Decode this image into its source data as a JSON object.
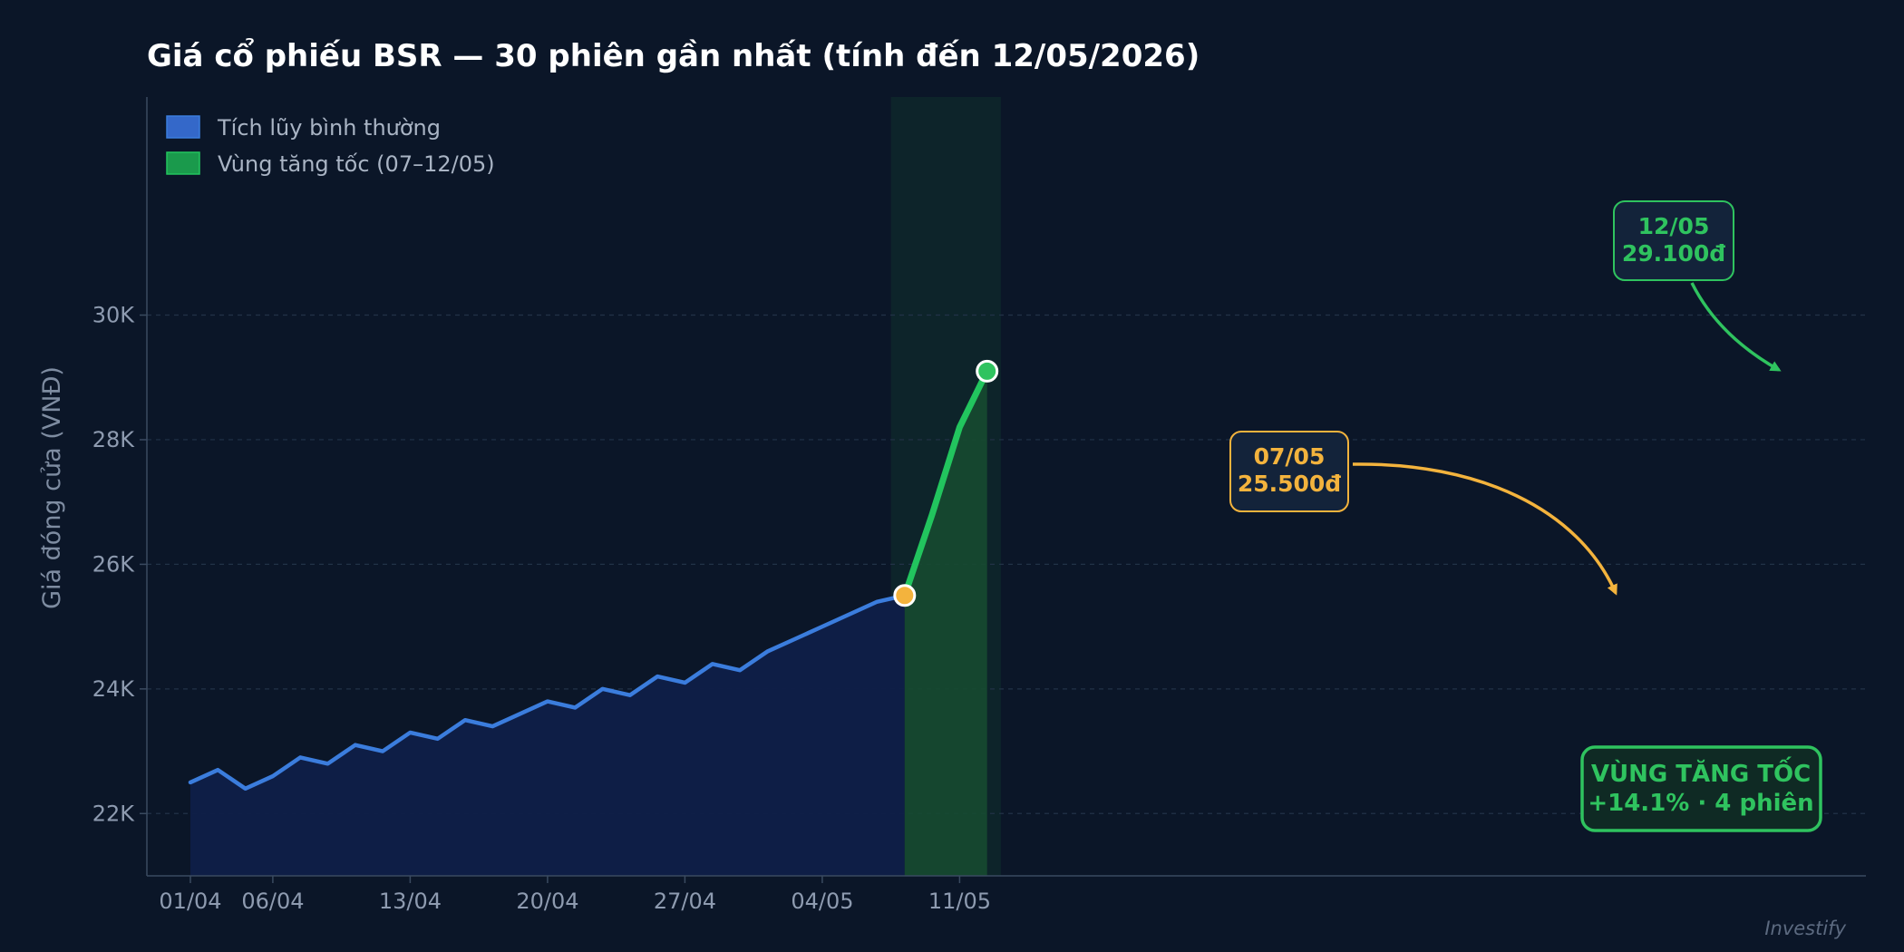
{
  "chart_data": {
    "type": "line",
    "title": "Giá cổ phiếu BSR — 30 phiên gần nhất (tính đến 12/05/2026)",
    "xlabel": "",
    "ylabel": "Giá đóng cửa (VNĐ)",
    "ylim": [
      21000,
      33500
    ],
    "yticks": [
      22000,
      24000,
      26000,
      28000,
      30000
    ],
    "ytick_labels": [
      "22K",
      "24K",
      "26K",
      "28K",
      "30K"
    ],
    "xticks": [
      {
        "index": 0,
        "label": "01/04"
      },
      {
        "index": 3,
        "label": "06/04"
      },
      {
        "index": 8,
        "label": "13/04"
      },
      {
        "index": 13,
        "label": "20/04"
      },
      {
        "index": 18,
        "label": "27/04"
      },
      {
        "index": 23,
        "label": "04/05"
      },
      {
        "index": 28,
        "label": "11/05"
      }
    ],
    "grid": true,
    "legend_position": "top-left",
    "series": [
      {
        "name": "Tích lũy bình thường",
        "color": "#3b7ddd",
        "start_index": 0,
        "values": [
          22500,
          22700,
          22400,
          22600,
          22900,
          22800,
          23100,
          23000,
          23300,
          23200,
          23500,
          23400,
          23600,
          23800,
          23700,
          24000,
          23900,
          24200,
          24100,
          24400,
          24300,
          24600,
          24800,
          25000,
          25200,
          25400,
          25500
        ]
      },
      {
        "name": "Vùng tăng tốc (07–12/05)",
        "color": "#22c55e",
        "start_index": 26,
        "values": [
          25500,
          26800,
          28200,
          29100
        ]
      }
    ],
    "highlight_zone": {
      "start_index": 25.5,
      "end_index": 29.5
    },
    "annotations": [
      {
        "line1": "07/05",
        "line2": "25.500đ",
        "index": 26,
        "value": 25500,
        "color": "#f3b33d"
      },
      {
        "line1": "12/05",
        "line2": "29.100đ",
        "index": 29,
        "value": 29100,
        "color": "#2fc35f"
      }
    ],
    "zone_box": {
      "line1": "VÙNG TĂNG TỐC",
      "line2": "+14.1%  ·  4 phiên"
    },
    "watermark": "Investify"
  }
}
